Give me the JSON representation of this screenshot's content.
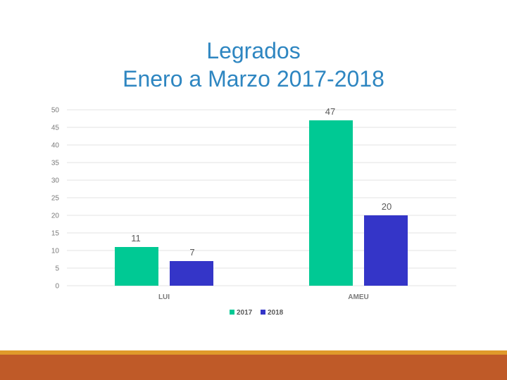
{
  "slide": {
    "title_line1": "Legrados",
    "title_line2": "Enero a Marzo 2017-2018"
  },
  "colors": {
    "title": "#2e86c1",
    "series_2017": "#00c994",
    "series_2018": "#3435c8",
    "grid": "#e3e3e3",
    "axis_text": "#7a7a7a",
    "footer_thin": "#e09a2b",
    "footer_band": "#bf5a28"
  },
  "chart_data": {
    "type": "bar",
    "title": "",
    "xlabel": "",
    "ylabel": "",
    "categories": [
      "LUI",
      "AMEU"
    ],
    "series": [
      {
        "name": "2017",
        "values": [
          11,
          47
        ]
      },
      {
        "name": "2018",
        "values": [
          7,
          20
        ]
      }
    ],
    "ylim": [
      0,
      50
    ],
    "yticks": [
      0,
      5,
      10,
      15,
      20,
      25,
      30,
      35,
      40,
      45,
      50
    ],
    "grid": true,
    "legend": "bottom",
    "data_labels": true
  }
}
